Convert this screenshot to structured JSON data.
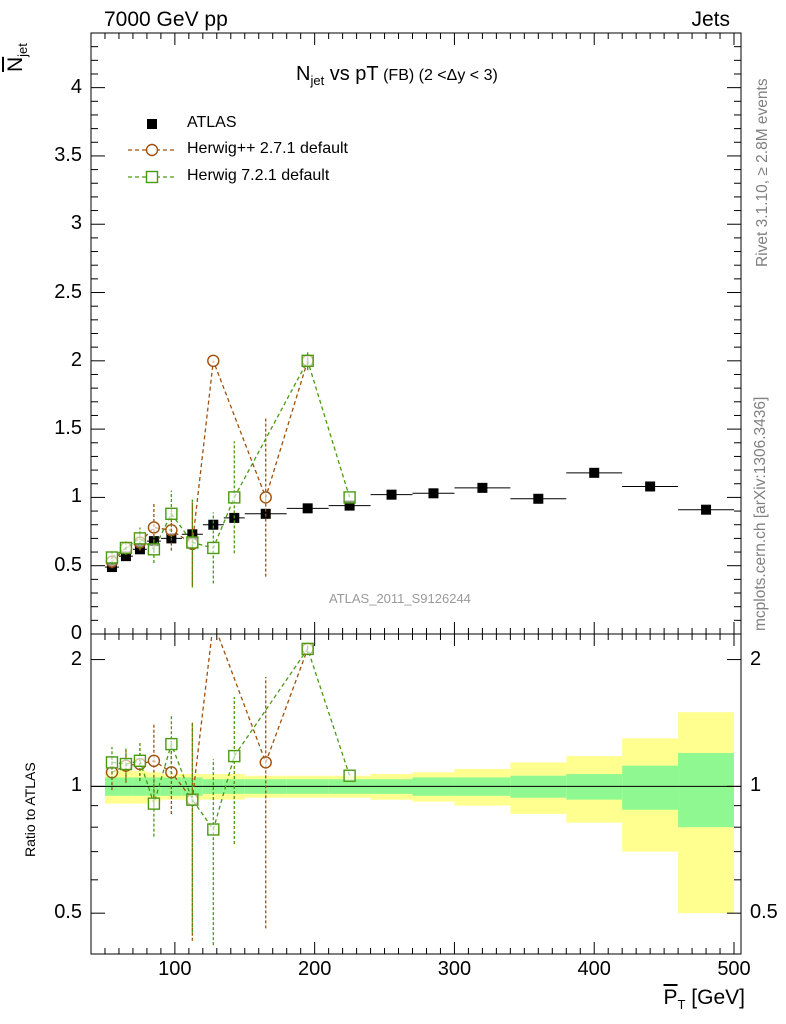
{
  "header": {
    "left": "7000 GeV pp",
    "right": "Jets"
  },
  "side_labels": {
    "rivet": "Rivet 3.1.10, ≥ 2.8M events",
    "mcplots": "mcplots.cern.ch [arXiv:1306.3436]"
  },
  "chart_data": {
    "type": "scatter",
    "title": {
      "main": "N",
      "main_sub": "jet",
      "mid": " vs pT",
      "fb": " (FB)",
      "rest": " (2 <Δy < 3)"
    },
    "watermark": "ATLAS_2011_S9126244",
    "ylabel": {
      "main": "N",
      "sub": "jet"
    },
    "xlabel": {
      "main": "P",
      "sub": "T",
      "unit": " [GeV]"
    },
    "ratio_ylabel": "Ratio to ATLAS",
    "xlim": [
      40,
      505
    ],
    "ylim": [
      0,
      4.4
    ],
    "ratio_ylim": [
      0.4,
      2.3
    ],
    "x_ticks": [
      100,
      200,
      300,
      400,
      500
    ],
    "x_tick_labels": [
      "100",
      "200",
      "300",
      "400",
      "500"
    ],
    "y_ticks": [
      0,
      0.5,
      1,
      1.5,
      2,
      2.5,
      3,
      3.5,
      4
    ],
    "y_tick_labels": [
      "0",
      "0.5",
      "1",
      "1.5",
      "2",
      "2.5",
      "3",
      "3.5",
      "4"
    ],
    "ratio_y_ticks": [
      0.5,
      1,
      2
    ],
    "ratio_y_tick_labels": [
      "0.5",
      "1",
      "2"
    ],
    "legend": [
      {
        "label": "ATLAS",
        "color": "#000000",
        "marker": "filled-square"
      },
      {
        "label": "Herwig++ 2.7.1 default",
        "color": "#a0500a",
        "marker": "open-circle"
      },
      {
        "label": "Herwig 7.2.1 default",
        "color": "#4a9a10",
        "marker": "open-square"
      }
    ],
    "atlas": {
      "x": [
        55,
        65,
        75,
        85,
        97.5,
        112.5,
        127.5,
        142.5,
        165,
        195,
        225,
        255,
        285,
        320,
        360,
        400,
        440,
        480
      ],
      "y": [
        0.49,
        0.57,
        0.62,
        0.68,
        0.7,
        0.73,
        0.8,
        0.85,
        0.88,
        0.92,
        0.94,
        1.02,
        1.03,
        1.07,
        0.99,
        1.18,
        1.08,
        0.91
      ],
      "xerr": [
        5,
        5,
        5,
        5,
        7.5,
        7.5,
        7.5,
        7.5,
        15,
        15,
        15,
        15,
        15,
        20,
        20,
        20,
        20,
        20
      ],
      "ratio_band_inner": [
        0.05,
        0.05,
        0.05,
        0.05,
        0.05,
        0.05,
        0.04,
        0.04,
        0.04,
        0.04,
        0.04,
        0.04,
        0.05,
        0.05,
        0.06,
        0.07,
        0.12,
        0.2
      ],
      "ratio_band_outer": [
        0.09,
        0.09,
        0.09,
        0.08,
        0.07,
        0.07,
        0.07,
        0.07,
        0.06,
        0.06,
        0.06,
        0.07,
        0.08,
        0.1,
        0.14,
        0.18,
        0.3,
        0.5
      ]
    },
    "series": [
      {
        "name": "Herwig++ 2.7.1 default",
        "color": "#a0500a",
        "x": [
          55,
          65,
          75,
          85,
          97.5,
          112.5,
          127.5,
          165,
          195
        ],
        "y": [
          0.53,
          0.63,
          0.67,
          0.78,
          0.76,
          0.66,
          2.0,
          1.0,
          2.0
        ],
        "err": [
          0.05,
          0.05,
          0.06,
          0.18,
          0.15,
          0.3,
          0.0,
          0.58,
          0.05
        ],
        "ratio": [
          1.08,
          1.12,
          1.13,
          1.15,
          1.08,
          0.93,
          2.45,
          1.14,
          2.12
        ],
        "ratio_err": [
          0.1,
          0.1,
          0.1,
          0.26,
          0.22,
          0.5,
          0.0,
          0.68,
          0.05
        ]
      },
      {
        "name": "Herwig 7.2.1 default",
        "color": "#4a9a10",
        "x": [
          55,
          65,
          75,
          85,
          97.5,
          112.5,
          127.5,
          142.5,
          195,
          225
        ],
        "y": [
          0.56,
          0.63,
          0.7,
          0.62,
          0.88,
          0.67,
          0.63,
          1.0,
          2.0,
          1.0
        ],
        "err": [
          0.05,
          0.05,
          0.08,
          0.1,
          0.17,
          0.33,
          0.26,
          0.41,
          0.07,
          0.0
        ],
        "ratio": [
          1.14,
          1.13,
          1.15,
          0.91,
          1.26,
          0.93,
          0.79,
          1.18,
          2.12,
          1.06
        ],
        "ratio_err": [
          0.1,
          0.1,
          0.12,
          0.15,
          0.22,
          0.48,
          0.37,
          0.45,
          0.06,
          0.0
        ]
      }
    ]
  }
}
